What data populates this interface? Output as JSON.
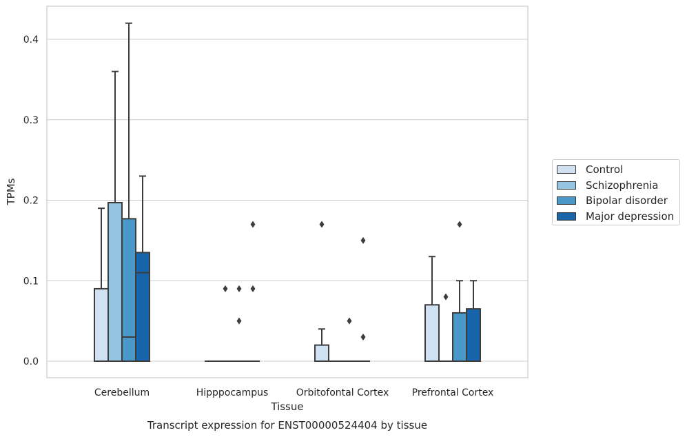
{
  "chart_data": {
    "type": "box",
    "title": "",
    "caption": "Transcript expression for ENST00000524404 by tissue",
    "xlabel": "Tissue",
    "ylabel": "TPMs",
    "ylim": [
      -0.02,
      0.44
    ],
    "yticks": [
      "0.0",
      "0.1",
      "0.2",
      "0.3",
      "0.4"
    ],
    "ytick_values": [
      0.0,
      0.1,
      0.2,
      0.3,
      0.4
    ],
    "grid": true,
    "legend_position": "right",
    "categories": [
      "Cerebellum",
      "Hipppocampus",
      "Orbitofontal Cortex",
      "Prefrontal Cortex"
    ],
    "series": [
      {
        "name": "Control",
        "color": "#d0e1f2",
        "boxes": [
          {
            "q1": 0.0,
            "median": 0.0,
            "q3": 0.09,
            "whisker_low": 0.0,
            "whisker_high": 0.19,
            "outliers": []
          },
          {
            "q1": 0.0,
            "median": 0.0,
            "q3": 0.0,
            "whisker_low": 0.0,
            "whisker_high": 0.0,
            "outliers": []
          },
          {
            "q1": 0.0,
            "median": 0.0,
            "q3": 0.02,
            "whisker_low": 0.0,
            "whisker_high": 0.04,
            "outliers": [
              0.17
            ]
          },
          {
            "q1": 0.0,
            "median": 0.0,
            "q3": 0.07,
            "whisker_low": 0.0,
            "whisker_high": 0.13,
            "outliers": []
          }
        ]
      },
      {
        "name": "Schizophrenia",
        "color": "#94c4df",
        "boxes": [
          {
            "q1": 0.0,
            "median": 0.0,
            "q3": 0.197,
            "whisker_low": 0.0,
            "whisker_high": 0.36,
            "outliers": []
          },
          {
            "q1": 0.0,
            "median": 0.0,
            "q3": 0.0,
            "whisker_low": 0.0,
            "whisker_high": 0.0,
            "outliers": [
              0.09
            ]
          },
          {
            "q1": 0.0,
            "median": 0.0,
            "q3": 0.0,
            "whisker_low": 0.0,
            "whisker_high": 0.0,
            "outliers": []
          },
          {
            "q1": 0.0,
            "median": 0.0,
            "q3": 0.0,
            "whisker_low": 0.0,
            "whisker_high": 0.0,
            "outliers": [
              0.08
            ]
          }
        ]
      },
      {
        "name": "Bipolar disorder",
        "color": "#4a98c9",
        "boxes": [
          {
            "q1": 0.0,
            "median": 0.03,
            "q3": 0.177,
            "whisker_low": 0.0,
            "whisker_high": 0.42,
            "outliers": []
          },
          {
            "q1": 0.0,
            "median": 0.0,
            "q3": 0.0,
            "whisker_low": 0.0,
            "whisker_high": 0.0,
            "outliers": [
              0.09,
              0.05
            ]
          },
          {
            "q1": 0.0,
            "median": 0.0,
            "q3": 0.0,
            "whisker_low": 0.0,
            "whisker_high": 0.0,
            "outliers": [
              0.05
            ]
          },
          {
            "q1": 0.0,
            "median": 0.0,
            "q3": 0.06,
            "whisker_low": 0.0,
            "whisker_high": 0.1,
            "outliers": [
              0.17
            ]
          }
        ]
      },
      {
        "name": "Major depression",
        "color": "#1764ab",
        "boxes": [
          {
            "q1": 0.0,
            "median": 0.11,
            "q3": 0.135,
            "whisker_low": 0.0,
            "whisker_high": 0.23,
            "outliers": []
          },
          {
            "q1": 0.0,
            "median": 0.0,
            "q3": 0.0,
            "whisker_low": 0.0,
            "whisker_high": 0.0,
            "outliers": [
              0.17,
              0.09
            ]
          },
          {
            "q1": 0.0,
            "median": 0.0,
            "q3": 0.0,
            "whisker_low": 0.0,
            "whisker_high": 0.0,
            "outliers": [
              0.03,
              0.15
            ]
          },
          {
            "q1": 0.0,
            "median": 0.0,
            "q3": 0.065,
            "whisker_low": 0.0,
            "whisker_high": 0.1,
            "outliers": []
          }
        ]
      }
    ]
  }
}
